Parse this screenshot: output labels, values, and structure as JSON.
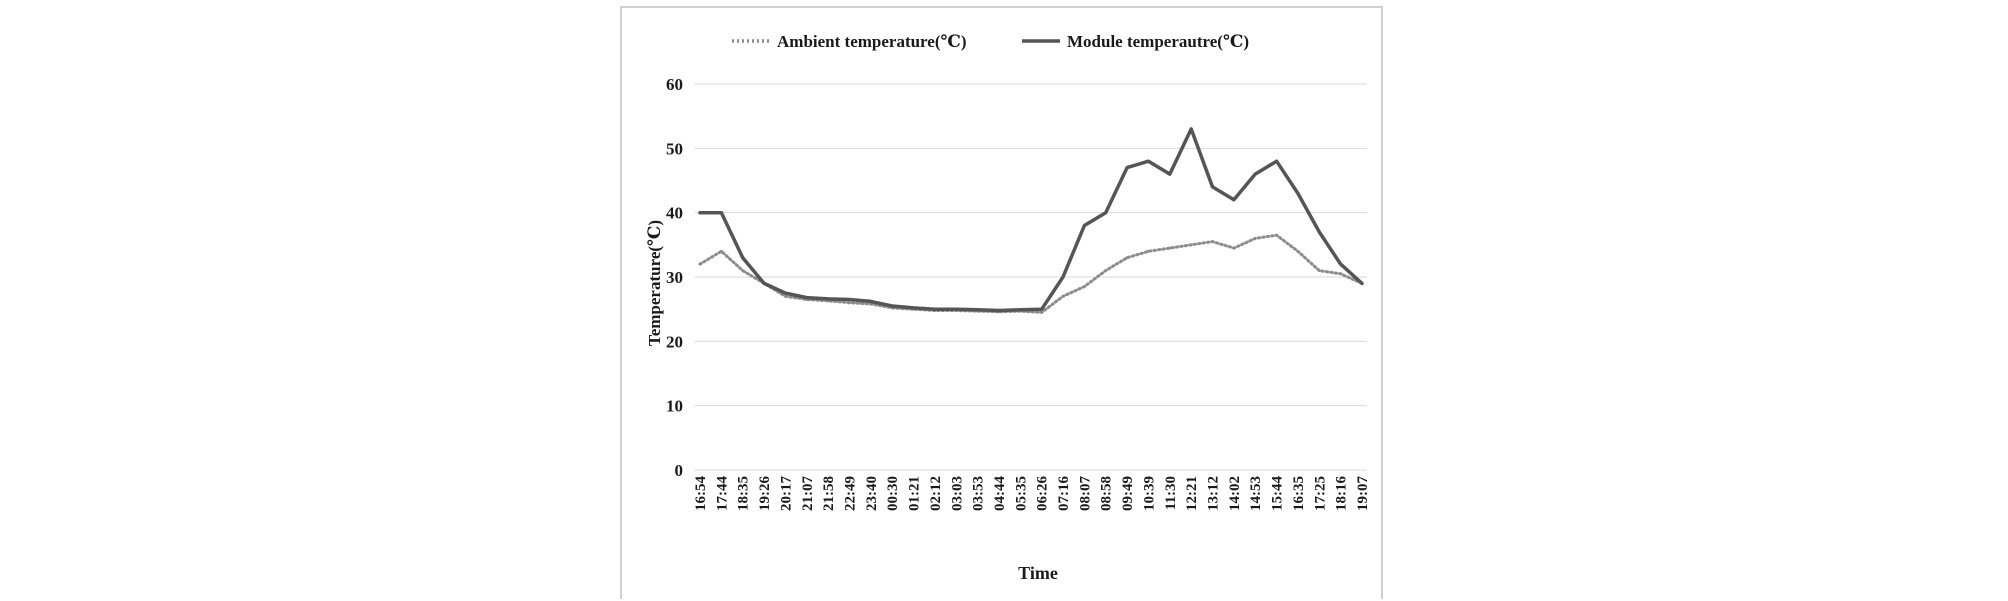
{
  "chart_data": {
    "type": "line",
    "title": "",
    "xlabel": "Time",
    "ylabel": "Temperature(℃)",
    "ylim": [
      0,
      60
    ],
    "yticks": [
      0,
      10,
      20,
      30,
      40,
      50,
      60
    ],
    "grid": true,
    "legend_position": "top",
    "categories": [
      "16:54",
      "17:44",
      "18:35",
      "19:26",
      "20:17",
      "21:07",
      "21:58",
      "22:49",
      "23:40",
      "00:30",
      "01:21",
      "02:12",
      "03:03",
      "03:53",
      "04:44",
      "05:35",
      "06:26",
      "07:16",
      "08:07",
      "08:58",
      "09:49",
      "10:39",
      "11:30",
      "12:21",
      "13:12",
      "14:02",
      "14:53",
      "15:44",
      "16:35",
      "17:25",
      "18:16",
      "19:07"
    ],
    "series": [
      {
        "name": "Ambient temperature(℃)",
        "style": "dotted",
        "color": "#8c8c8c",
        "values": [
          32,
          34,
          31,
          29,
          27,
          26.5,
          26.3,
          26,
          25.8,
          25.2,
          25,
          24.8,
          24.8,
          24.7,
          24.6,
          24.7,
          24.5,
          27,
          28.5,
          31,
          33,
          34,
          34.5,
          35,
          35.5,
          34.5,
          36,
          36.5,
          34,
          31,
          30.5,
          29
        ]
      },
      {
        "name": "Module temperautre(℃)",
        "style": "solid",
        "color": "#555555",
        "values": [
          40,
          40,
          33,
          29,
          27.5,
          26.8,
          26.6,
          26.5,
          26.2,
          25.5,
          25.2,
          25,
          25,
          24.9,
          24.8,
          24.9,
          25,
          30,
          38,
          40,
          47,
          48,
          46,
          53,
          44,
          42,
          46,
          48,
          43,
          37,
          32,
          29
        ]
      }
    ]
  }
}
